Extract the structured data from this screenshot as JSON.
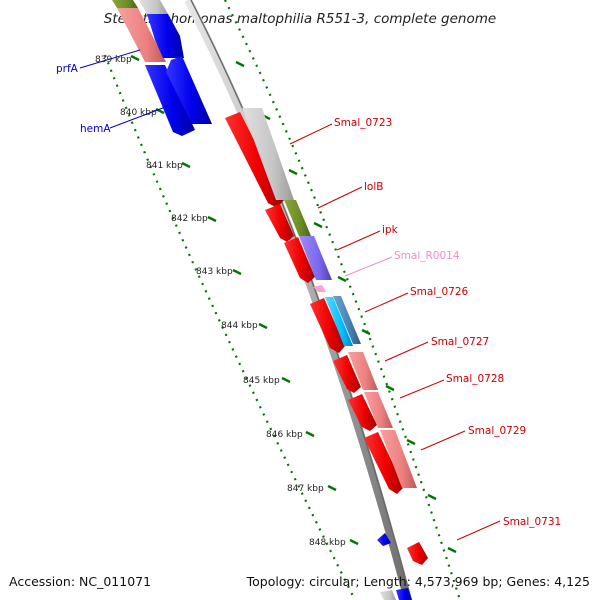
{
  "title": "Stenotrophomonas maltophilia R551-3, complete genome",
  "footer": {
    "accession": "Accession: NC_011071",
    "summary": "Topology: circular; Length: 4,573,969 bp; Genes: 4,125"
  },
  "ticks": [
    "839 kbp",
    "840 kbp",
    "841 kbp",
    "842 kbp",
    "843 kbp",
    "844 kbp",
    "845 kbp",
    "846 kbp",
    "847 kbp",
    "848 kbp"
  ],
  "genes": [
    {
      "name": "prfA",
      "color": "#0000cc"
    },
    {
      "name": "hemA",
      "color": "#0000cc"
    },
    {
      "name": "Smal_0723",
      "color": "#cc0000"
    },
    {
      "name": "lolB",
      "color": "#cc0000"
    },
    {
      "name": "ipk",
      "color": "#cc0000"
    },
    {
      "name": "Smal_R0014",
      "color": "#f08cc8"
    },
    {
      "name": "Smal_0726",
      "color": "#cc0000"
    },
    {
      "name": "Smal_0727",
      "color": "#cc0000"
    },
    {
      "name": "Smal_0728",
      "color": "#cc0000"
    },
    {
      "name": "Smal_0729",
      "color": "#cc0000"
    },
    {
      "name": "Smal_0731",
      "color": "#cc0000"
    }
  ],
  "colors": {
    "forward_cds": "#ff0000",
    "reverse_cds": "#0000ff",
    "cog_gray": "#c8c8c8",
    "cog_salmon": "#f08080",
    "cog_olive": "#6b8e23",
    "cog_purple": "#7b68ee",
    "cog_cyan": "#00bfff",
    "cog_steel": "#4682b4",
    "rna": "#ffa0d0",
    "backbone": "#888888",
    "tick_dots": "#007700"
  }
}
